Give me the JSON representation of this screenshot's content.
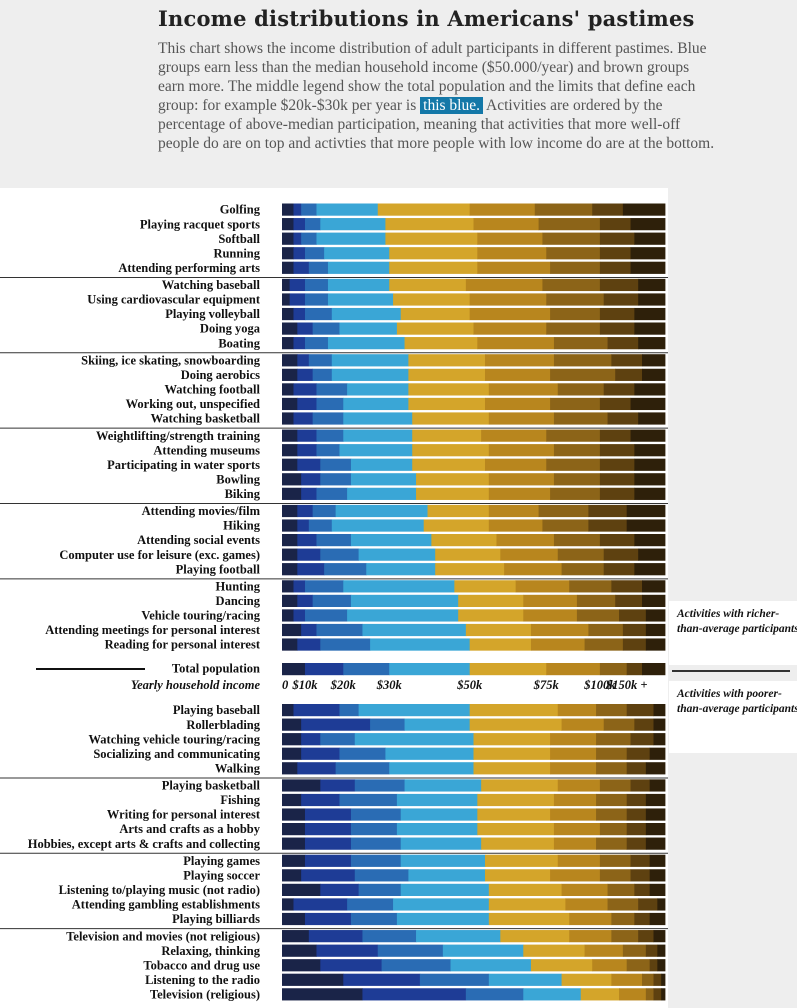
{
  "title": "Income distributions in Americans' pastimes",
  "intro": {
    "text_before": "This chart shows the income distribution of adult participants in different pastimes. Blue groups earn less than the median household income ($50.000/year) and brown groups earn more. The middle legend show the total population and the limits that define each group: for example $20k-$30k per year is ",
    "highlight": "this blue.",
    "text_after": " Activities are ordered by the percentage of above-median participation, meaning that activities that more well-off people do are on top and activties that more people with low income do are at the bottom."
  },
  "callouts": {
    "rich": "Activities with richer-than-average participants",
    "poor": "Activities with poorer-than-average participants"
  },
  "colors": [
    "#1a2448",
    "#1e3c96",
    "#2a6cb4",
    "#3aa6d6",
    "#d4a52a",
    "#b8861e",
    "#8c6418",
    "#5e4110",
    "#2e200a"
  ],
  "chart_data": {
    "type": "bar",
    "stacked": "100%",
    "orientation": "horizontal",
    "legend": {
      "label": "Total population",
      "sublabel": "Yearly household income",
      "ticks": [
        "0",
        "$10k",
        "$20k",
        "$30k",
        "$50k",
        "$75k",
        "$100k",
        "$150k +"
      ],
      "shares": [
        0.06,
        0.1,
        0.12,
        0.21,
        0.2,
        0.14,
        0.07,
        0.04,
        0.06
      ]
    },
    "rich_groups": [
      [
        {
          "label": "Golfing",
          "shares": [
            0.03,
            0.02,
            0.04,
            0.16,
            0.24,
            0.17,
            0.15,
            0.08,
            0.11
          ]
        },
        {
          "label": "Playing racquet sports",
          "shares": [
            0.03,
            0.03,
            0.04,
            0.17,
            0.23,
            0.17,
            0.16,
            0.08,
            0.09
          ]
        },
        {
          "label": "Softball",
          "shares": [
            0.03,
            0.02,
            0.04,
            0.18,
            0.24,
            0.17,
            0.15,
            0.09,
            0.08
          ]
        },
        {
          "label": "Running",
          "shares": [
            0.03,
            0.03,
            0.05,
            0.17,
            0.23,
            0.18,
            0.14,
            0.08,
            0.09
          ]
        },
        {
          "label": "Attending performing arts",
          "shares": [
            0.03,
            0.04,
            0.05,
            0.16,
            0.23,
            0.19,
            0.13,
            0.08,
            0.09
          ]
        }
      ],
      [
        {
          "label": "Watching baseball",
          "shares": [
            0.02,
            0.04,
            0.06,
            0.16,
            0.2,
            0.2,
            0.15,
            0.1,
            0.07
          ]
        },
        {
          "label": "Using cardiovascular equipment",
          "shares": [
            0.02,
            0.04,
            0.06,
            0.17,
            0.2,
            0.2,
            0.15,
            0.09,
            0.07
          ]
        },
        {
          "label": "Playing volleyball",
          "shares": [
            0.03,
            0.03,
            0.07,
            0.18,
            0.18,
            0.21,
            0.13,
            0.09,
            0.08
          ]
        },
        {
          "label": "Doing yoga",
          "shares": [
            0.04,
            0.04,
            0.07,
            0.15,
            0.2,
            0.19,
            0.14,
            0.09,
            0.08
          ]
        },
        {
          "label": "Boating",
          "shares": [
            0.03,
            0.03,
            0.06,
            0.2,
            0.19,
            0.2,
            0.14,
            0.08,
            0.07
          ]
        }
      ],
      [
        {
          "label": "Skiing, ice skating, snowboarding",
          "shares": [
            0.04,
            0.03,
            0.06,
            0.2,
            0.2,
            0.18,
            0.15,
            0.08,
            0.06
          ]
        },
        {
          "label": "Doing aerobics",
          "shares": [
            0.04,
            0.04,
            0.05,
            0.2,
            0.2,
            0.17,
            0.17,
            0.07,
            0.06
          ]
        },
        {
          "label": "Watching football",
          "shares": [
            0.03,
            0.06,
            0.08,
            0.16,
            0.21,
            0.18,
            0.12,
            0.08,
            0.08
          ]
        },
        {
          "label": "Working out, unspecified",
          "shares": [
            0.04,
            0.05,
            0.07,
            0.17,
            0.2,
            0.17,
            0.13,
            0.08,
            0.09
          ]
        },
        {
          "label": "Watching basketball",
          "shares": [
            0.03,
            0.05,
            0.08,
            0.18,
            0.2,
            0.17,
            0.14,
            0.08,
            0.07
          ]
        }
      ],
      [
        {
          "label": "Weightlifting/strength training",
          "shares": [
            0.04,
            0.05,
            0.07,
            0.18,
            0.18,
            0.17,
            0.14,
            0.08,
            0.09
          ]
        },
        {
          "label": "Attending museums",
          "shares": [
            0.04,
            0.05,
            0.06,
            0.19,
            0.2,
            0.17,
            0.12,
            0.09,
            0.08
          ]
        },
        {
          "label": "Participating in water sports",
          "shares": [
            0.04,
            0.06,
            0.08,
            0.16,
            0.19,
            0.16,
            0.14,
            0.09,
            0.08
          ]
        },
        {
          "label": "Bowling",
          "shares": [
            0.05,
            0.05,
            0.08,
            0.17,
            0.19,
            0.17,
            0.12,
            0.09,
            0.08
          ]
        },
        {
          "label": "Biking",
          "shares": [
            0.05,
            0.04,
            0.08,
            0.18,
            0.19,
            0.16,
            0.13,
            0.09,
            0.08
          ]
        }
      ],
      [
        {
          "label": "Attending movies/film",
          "shares": [
            0.04,
            0.04,
            0.06,
            0.24,
            0.16,
            0.13,
            0.13,
            0.1,
            0.1
          ]
        },
        {
          "label": "Hiking",
          "shares": [
            0.04,
            0.03,
            0.06,
            0.24,
            0.17,
            0.14,
            0.12,
            0.1,
            0.1
          ]
        },
        {
          "label": "Attending social events",
          "shares": [
            0.04,
            0.05,
            0.09,
            0.21,
            0.17,
            0.15,
            0.12,
            0.09,
            0.08
          ]
        },
        {
          "label": "Computer use for leisure (exc. games)",
          "shares": [
            0.04,
            0.06,
            0.1,
            0.2,
            0.17,
            0.15,
            0.12,
            0.09,
            0.07
          ]
        },
        {
          "label": "Playing football",
          "shares": [
            0.04,
            0.07,
            0.11,
            0.18,
            0.18,
            0.15,
            0.11,
            0.08,
            0.08
          ]
        }
      ],
      [
        {
          "label": "Hunting",
          "shares": [
            0.03,
            0.03,
            0.1,
            0.29,
            0.16,
            0.14,
            0.11,
            0.08,
            0.06
          ]
        },
        {
          "label": "Dancing",
          "shares": [
            0.04,
            0.04,
            0.1,
            0.28,
            0.17,
            0.14,
            0.1,
            0.07,
            0.06
          ]
        },
        {
          "label": "Vehicle touring/racing",
          "shares": [
            0.03,
            0.03,
            0.11,
            0.29,
            0.17,
            0.14,
            0.11,
            0.07,
            0.05
          ]
        },
        {
          "label": "Attending meetings for personal interest",
          "shares": [
            0.05,
            0.04,
            0.12,
            0.27,
            0.17,
            0.15,
            0.09,
            0.06,
            0.05
          ]
        },
        {
          "label": "Reading for personal interest",
          "shares": [
            0.04,
            0.06,
            0.13,
            0.26,
            0.16,
            0.14,
            0.1,
            0.06,
            0.05
          ]
        }
      ]
    ],
    "poor_groups": [
      [
        {
          "label": "Playing baseball",
          "shares": [
            0.03,
            0.12,
            0.05,
            0.29,
            0.23,
            0.1,
            0.08,
            0.07,
            0.03
          ]
        },
        {
          "label": "Rollerblading",
          "shares": [
            0.05,
            0.18,
            0.09,
            0.17,
            0.24,
            0.11,
            0.08,
            0.05,
            0.03
          ]
        },
        {
          "label": "Watching vehicle touring/racing",
          "shares": [
            0.05,
            0.05,
            0.09,
            0.31,
            0.2,
            0.12,
            0.09,
            0.06,
            0.03
          ]
        },
        {
          "label": "Socializing and communicating",
          "shares": [
            0.05,
            0.1,
            0.12,
            0.23,
            0.2,
            0.12,
            0.08,
            0.06,
            0.04
          ]
        },
        {
          "label": "Walking",
          "shares": [
            0.04,
            0.1,
            0.14,
            0.22,
            0.2,
            0.12,
            0.08,
            0.05,
            0.05
          ]
        }
      ],
      [
        {
          "label": "Playing basketball",
          "shares": [
            0.1,
            0.09,
            0.13,
            0.2,
            0.2,
            0.11,
            0.08,
            0.05,
            0.04
          ]
        },
        {
          "label": "Fishing",
          "shares": [
            0.05,
            0.1,
            0.15,
            0.21,
            0.2,
            0.11,
            0.08,
            0.05,
            0.05
          ]
        },
        {
          "label": "Writing for personal interest",
          "shares": [
            0.06,
            0.12,
            0.13,
            0.2,
            0.19,
            0.12,
            0.08,
            0.05,
            0.05
          ]
        },
        {
          "label": "Arts and crafts as a hobby",
          "shares": [
            0.06,
            0.12,
            0.12,
            0.21,
            0.2,
            0.12,
            0.07,
            0.05,
            0.05
          ]
        },
        {
          "label": "Hobbies, except arts & crafts and collecting",
          "shares": [
            0.06,
            0.12,
            0.13,
            0.21,
            0.19,
            0.11,
            0.08,
            0.05,
            0.05
          ]
        }
      ],
      [
        {
          "label": "Playing games",
          "shares": [
            0.06,
            0.12,
            0.13,
            0.22,
            0.19,
            0.11,
            0.08,
            0.05,
            0.04
          ]
        },
        {
          "label": "Playing soccer",
          "shares": [
            0.05,
            0.14,
            0.14,
            0.2,
            0.17,
            0.13,
            0.08,
            0.05,
            0.04
          ]
        },
        {
          "label": "Listening to/playing music (not radio)",
          "shares": [
            0.1,
            0.1,
            0.11,
            0.23,
            0.19,
            0.12,
            0.07,
            0.04,
            0.04
          ]
        },
        {
          "label": "Attending gambling establishments",
          "shares": [
            0.03,
            0.14,
            0.12,
            0.25,
            0.2,
            0.11,
            0.08,
            0.05,
            0.02
          ]
        },
        {
          "label": "Playing billiards",
          "shares": [
            0.06,
            0.12,
            0.12,
            0.24,
            0.21,
            0.11,
            0.06,
            0.04,
            0.04
          ]
        }
      ],
      [
        {
          "label": "Television and movies (not religious)",
          "shares": [
            0.07,
            0.14,
            0.14,
            0.22,
            0.18,
            0.11,
            0.07,
            0.04,
            0.03
          ]
        },
        {
          "label": "Relaxing, thinking",
          "shares": [
            0.09,
            0.16,
            0.17,
            0.21,
            0.16,
            0.1,
            0.06,
            0.03,
            0.02
          ]
        },
        {
          "label": "Tobacco and drug use",
          "shares": [
            0.1,
            0.16,
            0.18,
            0.21,
            0.16,
            0.09,
            0.06,
            0.02,
            0.02
          ]
        },
        {
          "label": "Listening to the radio",
          "shares": [
            0.16,
            0.2,
            0.18,
            0.19,
            0.13,
            0.08,
            0.03,
            0.02,
            0.01
          ]
        },
        {
          "label": "Television (religious)",
          "shares": [
            0.21,
            0.27,
            0.15,
            0.15,
            0.1,
            0.07,
            0.02,
            0.02,
            0.01
          ]
        }
      ]
    ]
  }
}
